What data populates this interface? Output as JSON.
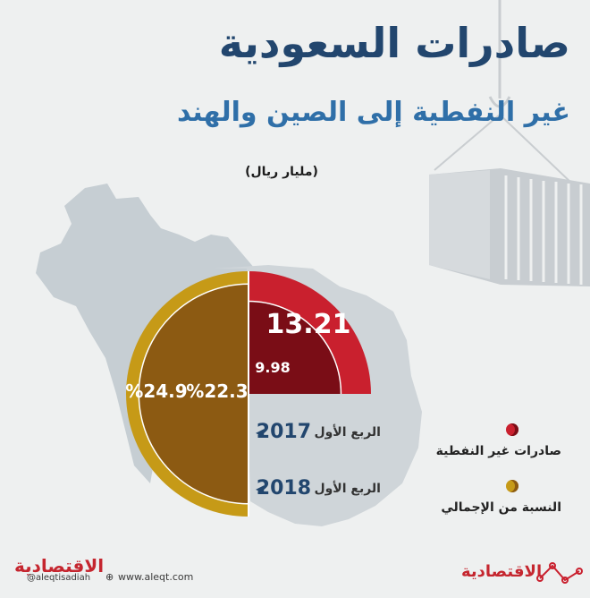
{
  "header": {
    "title": "صادرات السعودية",
    "subtitle": "غير النفطية إلى الصين والهند",
    "unit": "(مليار ريال)"
  },
  "legend": {
    "exports_label": "صادرات غير النفطية",
    "share_label": "النسبة من الإجمالي"
  },
  "colors": {
    "exports": "#c9202e",
    "exports_inner": "#7a0d16",
    "share": "#c69a17",
    "share_inner": "#8c5a12",
    "title": "#22466e"
  },
  "chart_data": {
    "type": "pie",
    "periods": [
      {
        "label": "الربع الأول",
        "year": "2017",
        "exports": 9.98,
        "share_pct": 22.3
      },
      {
        "label": "الربع الأول",
        "year": "2018",
        "exports": 13.21,
        "share_pct": 24.9
      }
    ],
    "value_labels": {
      "exports_2018": "13.21",
      "exports_2017": "9.98",
      "share_2018": "%24.9",
      "share_2017": "%22.3"
    }
  },
  "footer": {
    "handle": "@aleqtisadiah",
    "url": "www.aleqt.com",
    "brand_left": "الاقتصادية",
    "brand_right": "الاقتصادية"
  }
}
